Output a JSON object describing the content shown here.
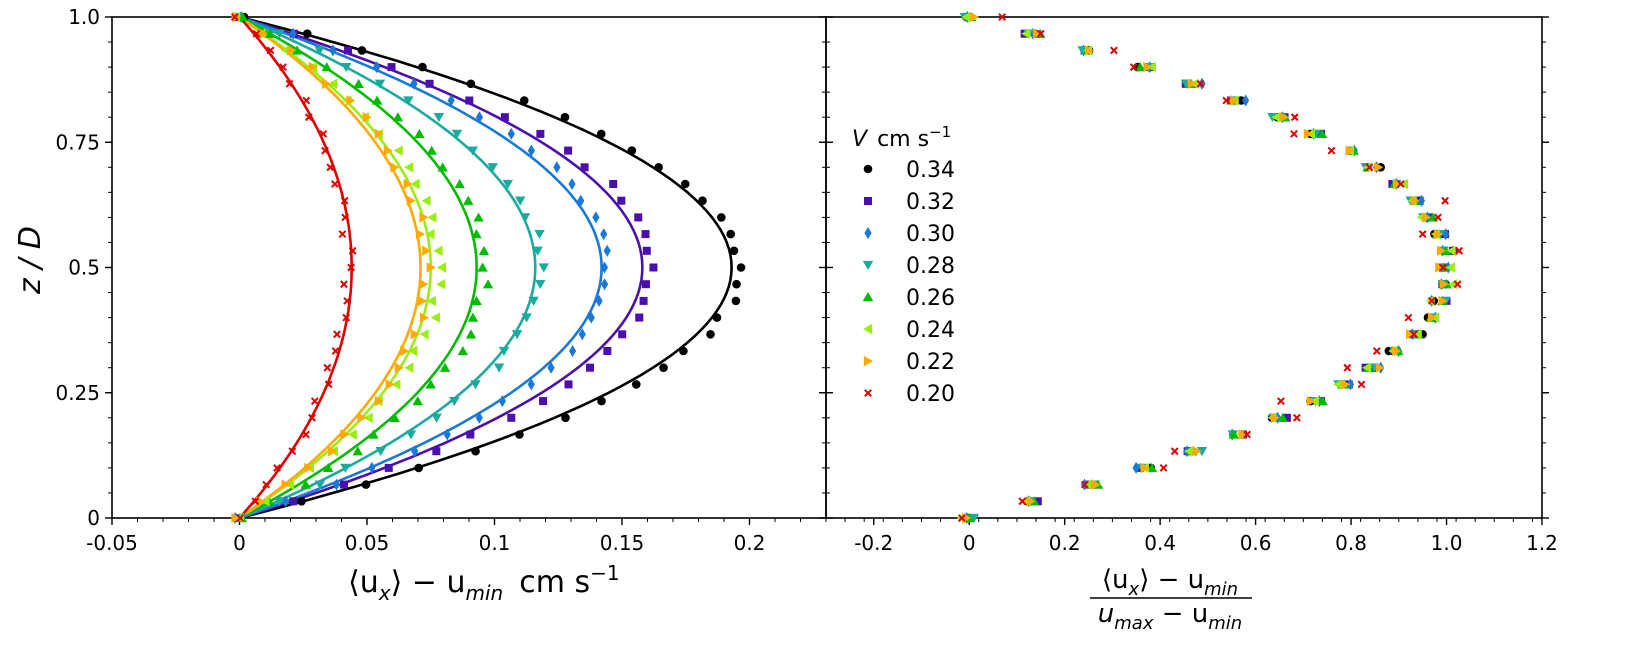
{
  "chart_data": [
    {
      "type": "scatter",
      "panel": "left",
      "xlabel": "⟨u_x⟩ − u_min  cm s⁻¹",
      "ylabel": "z / D",
      "xlim": [
        -0.05,
        0.23
      ],
      "ylim": [
        0,
        1
      ],
      "xticks": [
        -0.05,
        0,
        0.05,
        0.1,
        0.15,
        0.2
      ],
      "xtick_labels": [
        "-0.05",
        "0",
        "0.05",
        "0.1",
        "0.15",
        "0.2"
      ],
      "yticks": [
        0,
        0.25,
        0.5,
        0.75,
        1.0
      ],
      "ytick_labels": [
        "0",
        "0.25",
        "0.5",
        "0.75",
        "1.0"
      ],
      "series": [
        {
          "name": "0.34",
          "marker": "circle",
          "color": "#000000",
          "peak": 0.196,
          "fit_peak": 0.193
        },
        {
          "name": "0.32",
          "marker": "square",
          "color": "#4b0fae",
          "peak": 0.162,
          "fit_peak": 0.158
        },
        {
          "name": "0.30",
          "marker": "diamond",
          "color": "#1a78d6",
          "peak": 0.145,
          "fit_peak": 0.142
        },
        {
          "name": "0.28",
          "marker": "triangle-down",
          "color": "#1aaa9e",
          "peak": 0.118,
          "fit_peak": 0.116
        },
        {
          "name": "0.26",
          "marker": "triangle-up",
          "color": "#00bb00",
          "peak": 0.096,
          "fit_peak": 0.093
        },
        {
          "name": "0.24",
          "marker": "triangle-left",
          "color": "#99ee11",
          "peak": 0.078,
          "fit_peak": 0.075
        },
        {
          "name": "0.22",
          "marker": "triangle-right",
          "color": "#ffaa00",
          "peak": 0.074,
          "fit_peak": 0.071
        },
        {
          "name": "0.20",
          "marker": "x",
          "color": "#dd0000",
          "peak": 0.043,
          "fit_peak": 0.044
        }
      ]
    },
    {
      "type": "scatter",
      "panel": "right",
      "xlabel_num": "⟨u_x⟩ − u_min",
      "xlabel_den": "u_max − u_min",
      "xlim": [
        -0.3,
        1.2
      ],
      "ylim": [
        0,
        1
      ],
      "xticks": [
        -0.2,
        0,
        0.2,
        0.4,
        0.6,
        0.8,
        1.0,
        1.2
      ],
      "xtick_labels": [
        "-0.2",
        "0",
        "0.2",
        "0.4",
        "0.6",
        "0.8",
        "1.0",
        "1.2"
      ],
      "yticks": [
        0,
        0.25,
        0.5,
        0.75,
        1.0
      ],
      "series_peak": 1.0
    }
  ],
  "legend": {
    "title_var": "V",
    "title_unit": "cm s",
    "title_exp": "−1",
    "entries": [
      "0.34",
      "0.32",
      "0.30",
      "0.28",
      "0.26",
      "0.24",
      "0.22",
      "0.20"
    ]
  },
  "labels": {
    "ylabel": "z / D",
    "xlabel_left": "⟨u",
    "xlabel_left_sub": "x",
    "xlabel_left_mid": "⟩ − u",
    "xlabel_left_sub2": "min",
    "xlabel_left_unit": "cm s",
    "xlabel_left_exp": "−1",
    "xlabel_right_num": "⟨u",
    "xlabel_right_num_sub": "x",
    "xlabel_right_num_mid": "⟩ − u",
    "xlabel_right_num_sub2": "min",
    "xlabel_right_den_a": "u",
    "xlabel_right_den_sub1": "max",
    "xlabel_right_den_mid": " − u",
    "xlabel_right_den_sub2": "min"
  }
}
